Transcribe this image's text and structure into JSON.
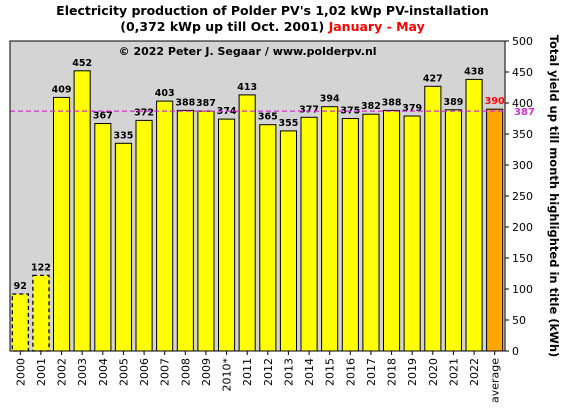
{
  "chart_data": {
    "type": "bar",
    "title_line1": "Electricity production  of Polder  PV's 1,02 kWp PV-installation",
    "title_line2_main": "(0,372 kWp up till Oct. 2001)",
    "title_line2_period": "January - May",
    "watermark": "© 2022 Peter J. Segaar / www.polderpv.nl",
    "ylabel": "Total yield up till month highlighted in title (kWh)",
    "ylim": [
      0,
      500
    ],
    "yticks": [
      0,
      50,
      100,
      150,
      200,
      250,
      300,
      350,
      400,
      450,
      500
    ],
    "categories": [
      "2000",
      "2001",
      "2002",
      "2003",
      "2004",
      "2005",
      "2006",
      "2007",
      "2008",
      "2009",
      "2010*",
      "2011",
      "2012",
      "2013",
      "2014",
      "2015",
      "2016",
      "2017",
      "2018",
      "2019",
      "2020",
      "2021",
      "2022",
      "average"
    ],
    "values": [
      92,
      122,
      409,
      452,
      367,
      335,
      372,
      403,
      388,
      387,
      374,
      413,
      365,
      355,
      377,
      394,
      375,
      382,
      388,
      379,
      427,
      389,
      438,
      390
    ],
    "partial_years": [
      "2000",
      "2001"
    ],
    "average_value": 390,
    "reference_line_value": 387,
    "grid": false,
    "colors": {
      "bar": "#ffff00",
      "average_bar": "#ffa500",
      "plot_background": "#d4d4d4",
      "reference_line": "#cc33cc",
      "average_label": "#ff0000",
      "title_period": "#ff0000"
    }
  }
}
